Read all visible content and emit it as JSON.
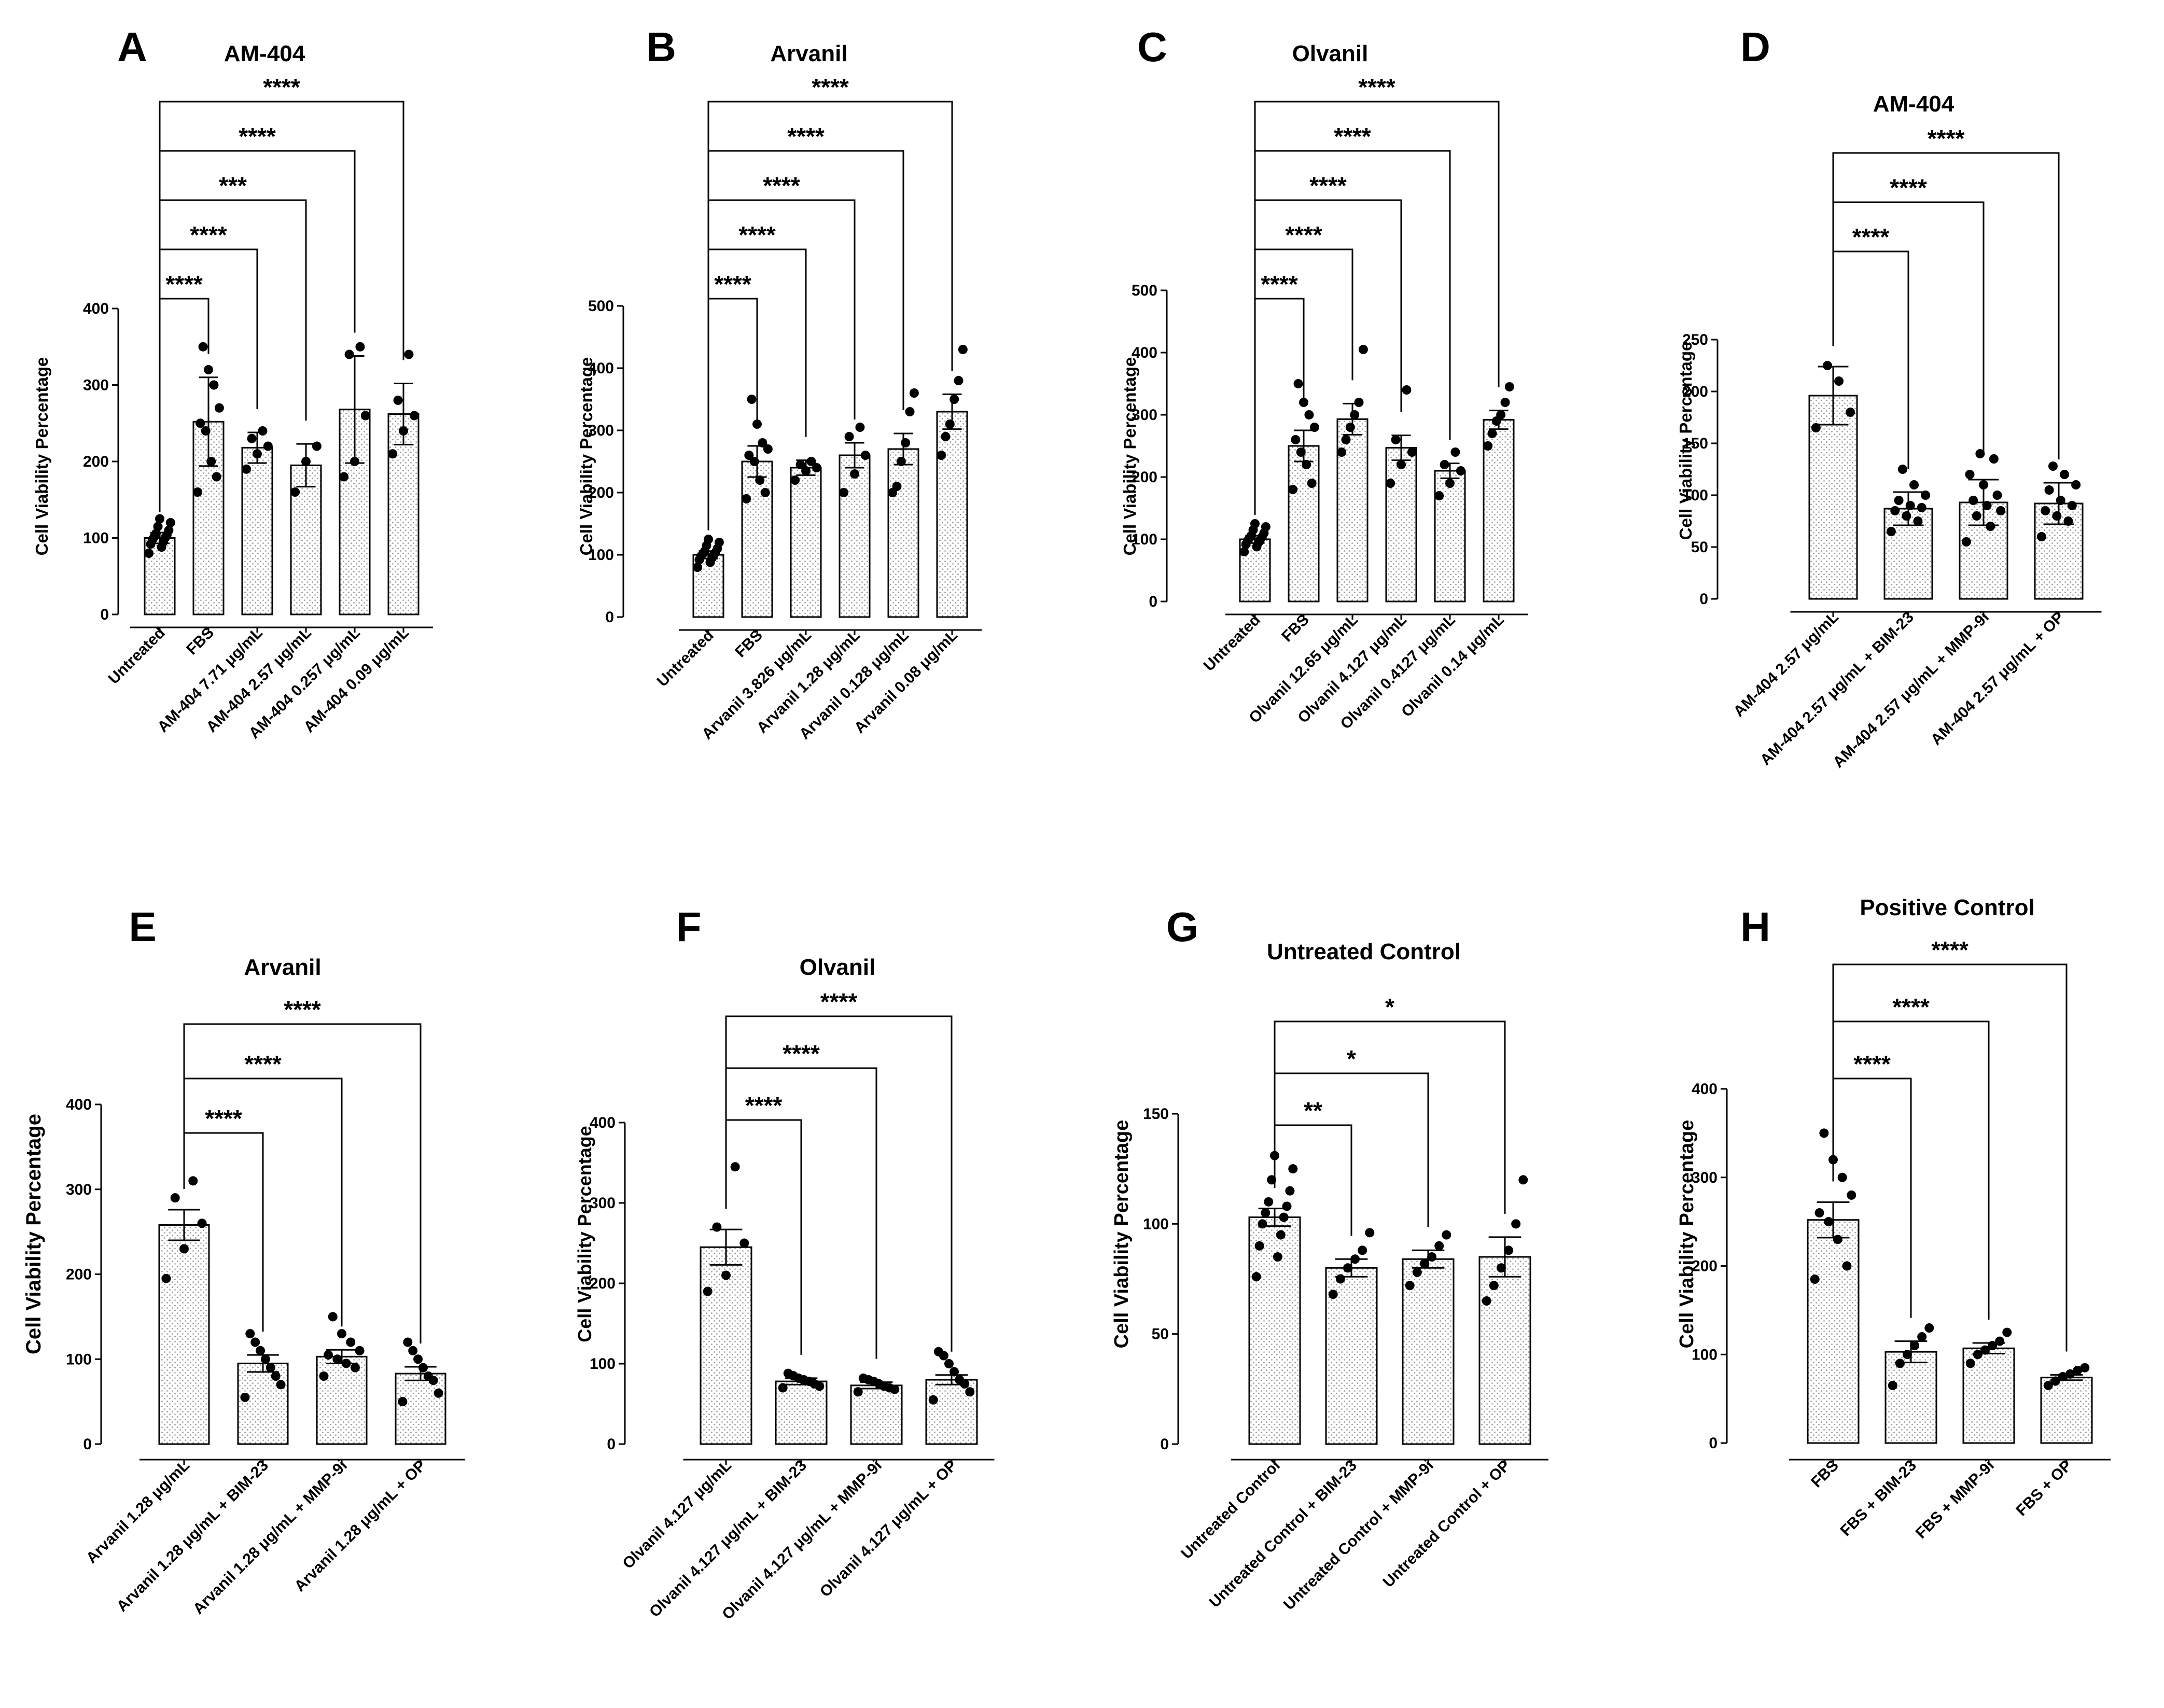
{
  "chart_data": [
    {
      "panel": "A",
      "title": "AM-404",
      "type": "bar",
      "ylabel": "Cell Viability Percentage",
      "ylim": [
        0,
        400
      ],
      "yticks": [
        0,
        100,
        200,
        300,
        400
      ],
      "categories": [
        "Untreated",
        "FBS",
        "AM-404 7.71 μg/mL",
        "AM-404 2.57 μg/mL",
        "AM-404 0.257 μg/mL",
        "AM-404 0.09 μg/mL"
      ],
      "values": [
        100,
        252,
        218,
        195,
        268,
        262
      ],
      "errors": [
        7,
        58,
        20,
        28,
        70,
        40
      ],
      "points": [
        [
          80,
          88,
          92,
          95,
          98,
          100,
          102,
          104,
          106,
          110,
          115,
          120,
          125
        ],
        [
          160,
          180,
          200,
          240,
          250,
          270,
          300,
          320,
          350
        ],
        [
          190,
          210,
          220,
          230,
          240
        ],
        [
          160,
          200,
          220
        ],
        [
          180,
          200,
          260,
          340,
          350
        ],
        [
          210,
          240,
          260,
          280,
          340
        ]
      ],
      "comparisons": [
        {
          "to": 1,
          "label": "****"
        },
        {
          "to": 2,
          "label": "****"
        },
        {
          "to": 3,
          "label": "***"
        },
        {
          "to": 4,
          "label": "****"
        },
        {
          "to": 5,
          "label": "****"
        }
      ]
    },
    {
      "panel": "B",
      "title": "Arvanil",
      "type": "bar",
      "ylabel": "Cell Viability Percentage",
      "ylim": [
        0,
        500
      ],
      "yticks": [
        0,
        100,
        200,
        300,
        400,
        500
      ],
      "categories": [
        "Untreated",
        "FBS",
        "Arvanil 3.826 μg/mL",
        "Arvanil 1.28 μg/mL",
        "Arvanil 0.128 μg/mL",
        "Arvanil 0.08 μg/mL"
      ],
      "values": [
        100,
        250,
        240,
        260,
        270,
        330
      ],
      "errors": [
        6,
        25,
        12,
        20,
        25,
        28
      ],
      "points": [
        [
          80,
          88,
          92,
          95,
          98,
          100,
          102,
          104,
          106,
          110,
          115,
          120,
          125
        ],
        [
          190,
          200,
          220,
          250,
          260,
          270,
          280,
          310,
          350
        ],
        [
          220,
          235,
          240,
          245,
          250
        ],
        [
          200,
          230,
          260,
          290,
          305
        ],
        [
          200,
          210,
          250,
          280,
          330,
          360
        ],
        [
          260,
          290,
          310,
          350,
          380,
          430
        ]
      ],
      "comparisons": [
        {
          "to": 1,
          "label": "****"
        },
        {
          "to": 2,
          "label": "****"
        },
        {
          "to": 3,
          "label": "****"
        },
        {
          "to": 4,
          "label": "****"
        },
        {
          "to": 5,
          "label": "****"
        }
      ]
    },
    {
      "panel": "C",
      "title": "Olvanil",
      "type": "bar",
      "ylabel": "Cell Viability Percentage",
      "ylim": [
        0,
        500
      ],
      "yticks": [
        0,
        100,
        200,
        300,
        400,
        500
      ],
      "categories": [
        "Untreated",
        "FBS",
        "Olvanil 12.65 μg/mL",
        "Olvanil 4.127 μg/mL",
        "Olvanil 0.4127 μg/mL",
        "Olvanil 0.14 μg/mL"
      ],
      "values": [
        100,
        250,
        293,
        247,
        210,
        292
      ],
      "errors": [
        6,
        25,
        25,
        20,
        12,
        15
      ],
      "points": [
        [
          80,
          88,
          92,
          95,
          98,
          100,
          102,
          104,
          106,
          110,
          115,
          120,
          125
        ],
        [
          180,
          190,
          220,
          240,
          260,
          280,
          300,
          320,
          350
        ],
        [
          240,
          260,
          280,
          300,
          320,
          405
        ],
        [
          190,
          220,
          240,
          260,
          340
        ],
        [
          170,
          190,
          210,
          220,
          240
        ],
        [
          250,
          270,
          290,
          300,
          320,
          345
        ]
      ],
      "comparisons": [
        {
          "to": 1,
          "label": "****"
        },
        {
          "to": 2,
          "label": "****"
        },
        {
          "to": 3,
          "label": "****"
        },
        {
          "to": 4,
          "label": "****"
        },
        {
          "to": 5,
          "label": "****"
        }
      ]
    },
    {
      "panel": "D",
      "title": "AM-404",
      "type": "bar",
      "ylabel": "Cell Viability Percentage",
      "ylim": [
        0,
        250
      ],
      "yticks": [
        0,
        50,
        100,
        150,
        200,
        250
      ],
      "categories": [
        "AM-404 2.57 μg/mL",
        "AM-404 2.57 μg/mL + BIM-23",
        "AM-404 2.57 μg/mL + MMP-9i",
        "AM-404 2.57 μg/mL + OP"
      ],
      "values": [
        196,
        87,
        93,
        92
      ],
      "errors": [
        28,
        16,
        22,
        20
      ],
      "points": [
        [
          165,
          180,
          210,
          225
        ],
        [
          65,
          75,
          80,
          85,
          88,
          90,
          95,
          100,
          110,
          125
        ],
        [
          55,
          70,
          80,
          85,
          90,
          95,
          100,
          110,
          120,
          135,
          140
        ],
        [
          60,
          75,
          80,
          85,
          90,
          95,
          105,
          110,
          120,
          128
        ]
      ],
      "comparisons": [
        {
          "to": 1,
          "label": "****"
        },
        {
          "to": 2,
          "label": "****"
        },
        {
          "to": 3,
          "label": "****"
        }
      ]
    },
    {
      "panel": "E",
      "title": "Arvanil",
      "type": "bar",
      "ylabel": "Cell Viability Percentage",
      "ylim": [
        0,
        400
      ],
      "yticks": [
        0,
        100,
        200,
        300,
        400
      ],
      "categories": [
        "Arvanil 1.28 μg/mL",
        "Arvanil 1.28 μg/mL + BIM-23",
        "Arvanil 1.28 μg/mL + MMP-9i",
        "Arvanil 1.28 μg/mL + OP"
      ],
      "values": [
        258,
        95,
        103,
        83
      ],
      "errors": [
        18,
        10,
        8,
        8
      ],
      "points": [
        [
          195,
          230,
          260,
          290,
          310
        ],
        [
          55,
          70,
          80,
          90,
          100,
          110,
          120,
          130
        ],
        [
          80,
          90,
          95,
          100,
          105,
          110,
          120,
          130,
          150
        ],
        [
          50,
          60,
          75,
          80,
          90,
          100,
          110,
          120
        ]
      ],
      "comparisons": [
        {
          "to": 1,
          "label": "****"
        },
        {
          "to": 2,
          "label": "****"
        },
        {
          "to": 3,
          "label": "****"
        }
      ]
    },
    {
      "panel": "F",
      "title": "Olvanil",
      "type": "bar",
      "ylabel": "Cell Viability Percentage",
      "ylim": [
        0,
        400
      ],
      "yticks": [
        0,
        100,
        200,
        300,
        400
      ],
      "categories": [
        "Olvanil 4.127 μg/mL",
        "Olvanil 4.127 μg/mL + BIM-23",
        "Olvanil 4.127 μg/mL + MMP-9i",
        "Olvanil 4.127 μg/mL + OP"
      ],
      "values": [
        245,
        78,
        73,
        80
      ],
      "errors": [
        22,
        4,
        4,
        6
      ],
      "points": [
        [
          190,
          210,
          250,
          270,
          345
        ],
        [
          70,
          72,
          75,
          78,
          80,
          82,
          85,
          88
        ],
        [
          65,
          68,
          70,
          72,
          75,
          78,
          80,
          82
        ],
        [
          55,
          65,
          75,
          80,
          90,
          100,
          110,
          115
        ]
      ],
      "comparisons": [
        {
          "to": 1,
          "label": "****"
        },
        {
          "to": 2,
          "label": "****"
        },
        {
          "to": 3,
          "label": "****"
        }
      ]
    },
    {
      "panel": "G",
      "title": "Untreated Control",
      "type": "bar",
      "ylabel": "Cell Viability Percentage",
      "ylim": [
        0,
        150
      ],
      "yticks": [
        0,
        50,
        100,
        150
      ],
      "categories": [
        "Untreated Control",
        "Untreated Control + BIM-23",
        "Untreated Control + MMP-9i",
        "Untreated Control + OP"
      ],
      "values": [
        103,
        80,
        84,
        85
      ],
      "errors": [
        4,
        4,
        4,
        9
      ],
      "points": [
        [
          76,
          85,
          90,
          95,
          100,
          103,
          105,
          108,
          110,
          115,
          120,
          125,
          131
        ],
        [
          68,
          75,
          80,
          84,
          88,
          96
        ],
        [
          72,
          78,
          82,
          85,
          90,
          95
        ],
        [
          65,
          72,
          80,
          88,
          100,
          120
        ]
      ],
      "comparisons": [
        {
          "to": 1,
          "label": "**"
        },
        {
          "to": 2,
          "label": "*"
        },
        {
          "to": 3,
          "label": "*"
        }
      ]
    },
    {
      "panel": "H",
      "title": "Positive Control",
      "type": "bar",
      "ylabel": "Cell Viability Percentage",
      "ylim": [
        0,
        400
      ],
      "yticks": [
        0,
        100,
        200,
        300,
        400
      ],
      "categories": [
        "FBS",
        "FBS + BIM-23",
        "FBS + MMP-9i",
        "FBS + OP"
      ],
      "values": [
        252,
        103,
        107,
        74
      ],
      "errors": [
        20,
        12,
        6,
        3
      ],
      "points": [
        [
          185,
          200,
          230,
          250,
          260,
          280,
          300,
          320,
          350
        ],
        [
          65,
          90,
          100,
          110,
          120,
          130
        ],
        [
          90,
          100,
          105,
          110,
          115,
          125
        ],
        [
          65,
          70,
          75,
          78,
          82,
          85
        ]
      ],
      "comparisons": [
        {
          "to": 1,
          "label": "****"
        },
        {
          "to": 2,
          "label": "****"
        },
        {
          "to": 3,
          "label": "****"
        }
      ]
    }
  ]
}
